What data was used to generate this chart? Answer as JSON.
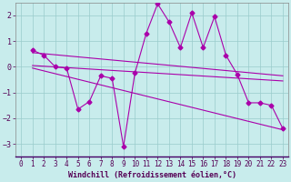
{
  "xlabel": "Windchill (Refroidissement éolien,°C)",
  "background_color": "#c8ecec",
  "line_color": "#aa00aa",
  "xlim": [
    -0.5,
    23.5
  ],
  "ylim": [
    -3.5,
    2.5
  ],
  "yticks": [
    -3,
    -2,
    -1,
    0,
    1,
    2
  ],
  "xticks": [
    0,
    1,
    2,
    3,
    4,
    5,
    6,
    7,
    8,
    9,
    10,
    11,
    12,
    13,
    14,
    15,
    16,
    17,
    18,
    19,
    20,
    21,
    22,
    23
  ],
  "series1_x": [
    1,
    2,
    3,
    4,
    5,
    6,
    7,
    8,
    9,
    10,
    11,
    12,
    13,
    14,
    15,
    16,
    17,
    18,
    19,
    20,
    21,
    22,
    23
  ],
  "series1_y": [
    0.65,
    0.45,
    0.0,
    -0.05,
    -1.65,
    -1.35,
    -0.35,
    -0.45,
    -3.1,
    -0.25,
    1.3,
    2.45,
    1.75,
    0.75,
    2.1,
    0.75,
    1.95,
    0.45,
    -0.3,
    -1.4,
    -1.4,
    -1.5,
    -2.4
  ],
  "trend1_x": [
    1,
    23
  ],
  "trend1_y": [
    0.55,
    -0.35
  ],
  "trend2_x": [
    1,
    23
  ],
  "trend2_y": [
    0.05,
    -0.55
  ],
  "trend3_x": [
    1,
    23
  ],
  "trend3_y": [
    -0.05,
    -2.45
  ],
  "grid_color": "#99cccc",
  "markersize": 2.5,
  "linewidth": 0.8,
  "tick_fontsize": 5.5,
  "xlabel_fontsize": 6.0
}
